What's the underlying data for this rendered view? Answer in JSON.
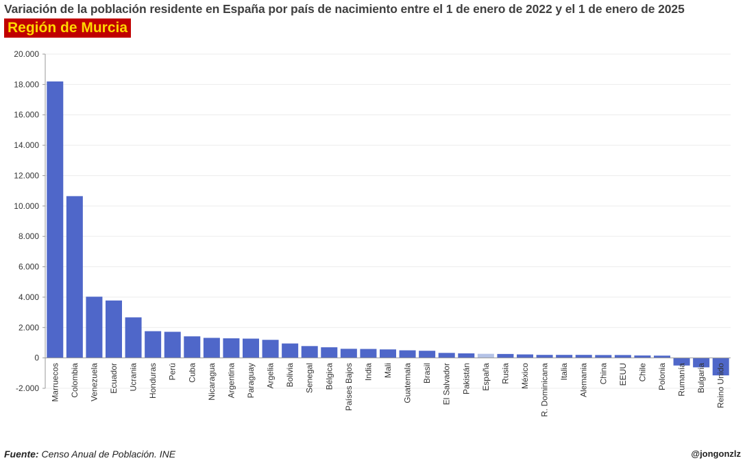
{
  "header": {
    "title": "Variación de la población residente en España por país de nacimiento entre el 1 de enero de 2022 y el 1 de enero de 2025",
    "region": "Región de Murcia"
  },
  "footer": {
    "source_label": "Fuente:",
    "source_text": "Censo Anual de Población. INE",
    "author": "@jongonzlz"
  },
  "colors": {
    "bar": "#4f67c9",
    "highlight": "#b4c2e6",
    "region_bg": "#c00000",
    "region_text": "#ffd700"
  },
  "chart_data": {
    "type": "bar",
    "title": "Variación de la población residente en España por país de nacimiento entre el 1 de enero de 2022 y el 1 de enero de 2025",
    "xlabel": "",
    "ylabel": "",
    "ylim": [
      -2000,
      20000
    ],
    "yticks": [
      "-2.000",
      "0",
      "2.000",
      "4.000",
      "6.000",
      "8.000",
      "10.000",
      "12.000",
      "14.000",
      "16.000",
      "18.000",
      "20.000"
    ],
    "grid": true,
    "highlight_category": "España",
    "categories": [
      "Marruecos",
      "Colombia",
      "Venezuela",
      "Ecuador",
      "Ucrania",
      "Honduras",
      "Perú",
      "Cuba",
      "Nicaragua",
      "Argentina",
      "Paraguay",
      "Argelia",
      "Bolivia",
      "Senegal",
      "Bélgica",
      "Países Bajos",
      "India",
      "Mali",
      "Guatemala",
      "Brasil",
      "El Salvador",
      "Pakistán",
      "España",
      "Rusia",
      "México",
      "R. Dominicana",
      "Italia",
      "Alemania",
      "China",
      "EEUU",
      "Chile",
      "Polonia",
      "Rumanía",
      "Bulgaria",
      "Reino Unido"
    ],
    "values": [
      18200,
      10650,
      4030,
      3780,
      2670,
      1760,
      1720,
      1420,
      1320,
      1290,
      1270,
      1190,
      950,
      780,
      700,
      600,
      590,
      560,
      500,
      470,
      330,
      300,
      270,
      260,
      230,
      200,
      200,
      200,
      190,
      190,
      160,
      150,
      -500,
      -620,
      -1150
    ]
  }
}
